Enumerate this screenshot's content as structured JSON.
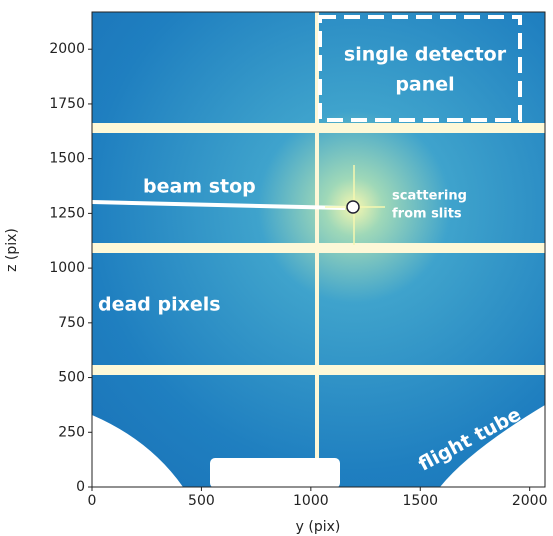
{
  "chart_data": {
    "type": "image",
    "xlabel": "y (pix)",
    "ylabel": "z (pix)",
    "xlim": [
      0,
      2070
    ],
    "ylim": [
      0,
      2170
    ],
    "xticks": [
      0,
      500,
      1000,
      1500,
      2000
    ],
    "yticks": [
      0,
      250,
      500,
      750,
      1000,
      1250,
      1500,
      1750,
      2000
    ],
    "annotations": [
      {
        "lines": [
          "single detector",
          "panel"
        ]
      },
      {
        "lines": [
          "beam stop"
        ]
      },
      {
        "lines": [
          "scattering",
          "from slits"
        ]
      },
      {
        "lines": [
          "dead pixels"
        ]
      },
      {
        "lines": [
          "flight tube"
        ]
      }
    ]
  }
}
